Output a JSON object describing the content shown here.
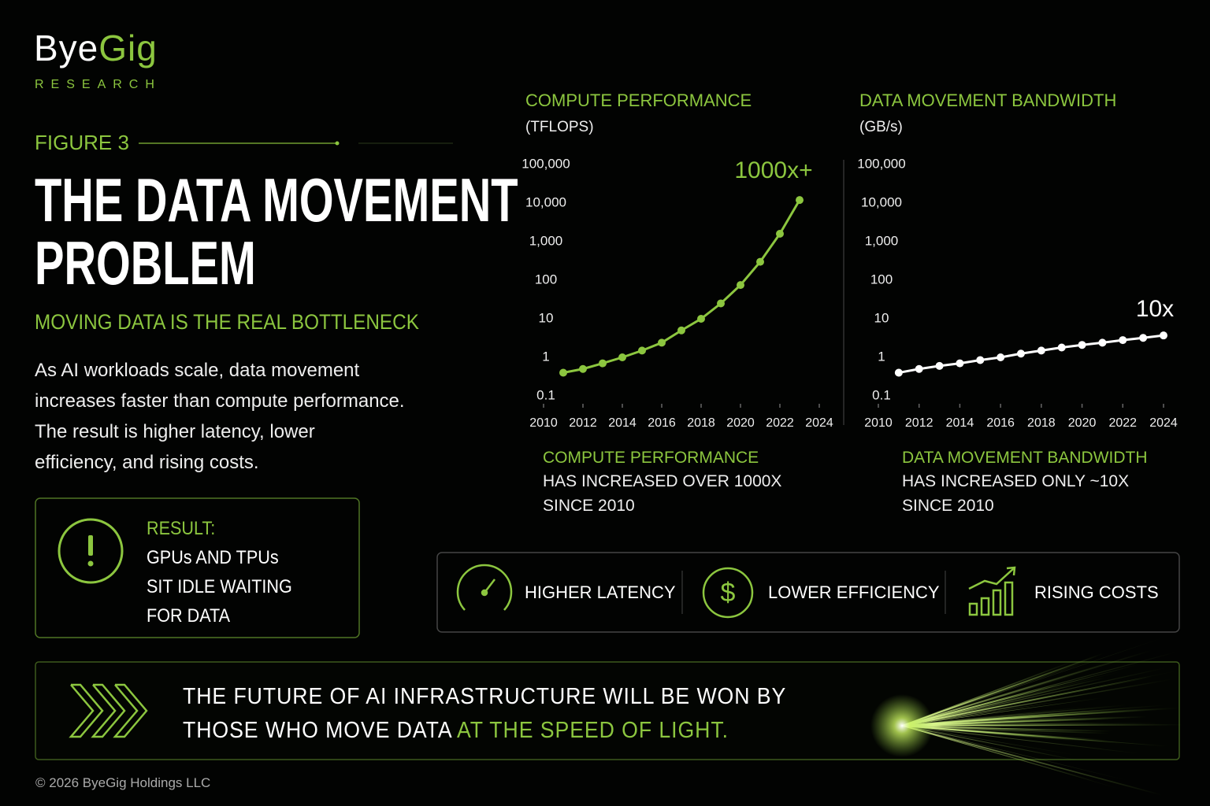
{
  "logo": {
    "name_start": "Bye",
    "name_end": "Gig",
    "tagline": "RESEARCH"
  },
  "figure_label": "FIGURE 3",
  "title_lines": [
    "THE DATA MOVEMENT",
    "PROBLEM"
  ],
  "subtitle": "MOVING DATA IS THE REAL BOTTLENECK",
  "body_lines": [
    "As AI workloads scale, data movement",
    "increases faster than compute performance.",
    "The result is higher latency, lower",
    "efficiency, and rising costs."
  ],
  "result": {
    "heading": "RESULT:",
    "lines": [
      "GPUs AND TPUs",
      "SIT IDLE WAITING",
      "FOR DATA"
    ]
  },
  "chart_data": [
    {
      "type": "line",
      "title": "COMPUTE PERFORMANCE",
      "y_label": "(TFLOPS)",
      "x": [
        2011,
        2012,
        2013,
        2014,
        2015,
        2016,
        2017,
        2018,
        2019,
        2020,
        2021,
        2022,
        2023
      ],
      "values": [
        0.4,
        0.5,
        0.7,
        1,
        1.5,
        2.4,
        5,
        10,
        25,
        75,
        300,
        1600,
        12000
      ],
      "color": "#8cc63f",
      "xlim": [
        2010,
        2024
      ],
      "xticks": [
        2010,
        2012,
        2014,
        2016,
        2018,
        2020,
        2022,
        2024
      ],
      "ylim": [
        0.1,
        100000
      ],
      "yticks": [
        0.1,
        1,
        10,
        100,
        {
          "value": 1000,
          "label": "1,000"
        },
        {
          "value": 10000,
          "label": "10,000"
        },
        {
          "value": 100000,
          "label": "100,000"
        }
      ],
      "y_scale": "log",
      "grid": false,
      "annotation": "1000x+",
      "annotation_color": "#8cc63f",
      "caption": {
        "heading": "COMPUTE PERFORMANCE",
        "lines": [
          "HAS INCREASED OVER 1000X",
          "SINCE 2010"
        ]
      }
    },
    {
      "type": "line",
      "title": "DATA MOVEMENT BANDWIDTH",
      "y_label": "(GB/s)",
      "x": [
        2011,
        2012,
        2013,
        2014,
        2015,
        2016,
        2017,
        2018,
        2019,
        2020,
        2021,
        2022,
        2023,
        2024
      ],
      "values": [
        0.4,
        0.5,
        0.6,
        0.7,
        0.85,
        1,
        1.25,
        1.5,
        1.8,
        2.1,
        2.4,
        2.8,
        3.2,
        3.7
      ],
      "color": "#ffffff",
      "xlim": [
        2010,
        2024
      ],
      "xticks": [
        2010,
        2012,
        2014,
        2016,
        2018,
        2020,
        2022,
        2024
      ],
      "ylim": [
        0.1,
        100000
      ],
      "yticks": [
        0.1,
        1,
        10,
        100,
        {
          "value": 1000,
          "label": "1,000"
        },
        {
          "value": 10000,
          "label": "10,000"
        },
        {
          "value": 100000,
          "label": "100,000"
        }
      ],
      "y_scale": "log",
      "grid": false,
      "annotation": "10x",
      "annotation_color": "#ffffff",
      "caption": {
        "heading": "DATA MOVEMENT BANDWIDTH",
        "lines": [
          "HAS INCREASED ONLY ~10X",
          "SINCE 2010"
        ]
      }
    }
  ],
  "impacts": [
    "HIGHER LATENCY",
    "LOWER EFFICIENCY",
    "RISING COSTS"
  ],
  "banner": {
    "lines": [
      "THE FUTURE OF AI INFRASTRUCTURE WILL BE WON BY",
      "THOSE WHO MOVE DATA"
    ],
    "highlight": "AT THE SPEED OF LIGHT."
  },
  "copyright": "© 2026 ByeGig Holdings LLC"
}
